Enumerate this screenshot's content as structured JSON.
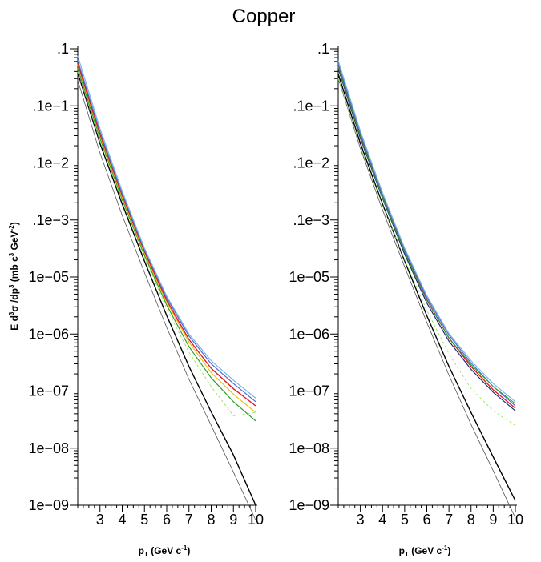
{
  "figure": {
    "title": "Copper"
  },
  "legend_colors": {
    "black": "#000000",
    "gray": "#555555",
    "red": "#e41a1c",
    "blue": "#4a6cd4",
    "lightblue": "#7ab6e6",
    "green": "#2ca02c",
    "lightgreen": "#88dd55",
    "yellow": "#e6c21a",
    "navy": "#1a2a80"
  },
  "chart_data": [
    {
      "type": "line",
      "panel": "left",
      "title": "",
      "xlabel": "p_T (GeV c^-1)",
      "xlabel_parts": {
        "main": "p",
        "sub": "T",
        "rest": " (GeV  c",
        "sup": "-1",
        "end": ")"
      },
      "ylabel": "E d3σ /dp3 (mb c3 GeV-2)",
      "ylabel_parts": [
        "E d",
        "3",
        "σ /dp",
        "3",
        "  (mb c",
        "3",
        " GeV",
        "-2",
        ")"
      ],
      "xlim": [
        2,
        10
      ],
      "ylim": [
        1e-09,
        0.1
      ],
      "yscale": "log",
      "x_ticks": [
        3,
        4,
        5,
        6,
        7,
        8,
        9,
        10
      ],
      "x_tick_labels": [
        "3",
        "4",
        "5",
        "6",
        "7",
        "8",
        "9",
        "10"
      ],
      "y_ticks": [
        0.1,
        0.01,
        0.001,
        0.0001,
        1e-05,
        1e-06,
        1e-07,
        1e-08,
        1e-09
      ],
      "y_tick_labels": [
        ".1",
        ".1e−1",
        ".1e−2",
        ".1e−3",
        "1e−05",
        "1e−06",
        "1e−07",
        "1e−08",
        "1e−09"
      ],
      "grid": false,
      "series": [
        {
          "color": "#555555",
          "width": 0.8,
          "dash": "",
          "x": [
            2,
            3,
            4,
            5,
            6,
            7,
            8,
            9,
            10
          ],
          "y": [
            0.028,
            0.0015,
            0.00012,
            1.2e-05,
            1.3e-06,
            1.6e-07,
            2.5e-08,
            3.8e-09,
            5.5e-10
          ]
        },
        {
          "color": "#000000",
          "width": 1.4,
          "dash": "",
          "x": [
            2,
            3,
            4,
            5,
            6,
            7,
            8,
            9,
            10
          ],
          "y": [
            0.038,
            0.0022,
            0.00019,
            1.9e-05,
            2.1e-06,
            2.7e-07,
            4.3e-08,
            7.6e-09,
            1e-09
          ]
        },
        {
          "color": "#88dd55",
          "width": 0.8,
          "dash": "3,3",
          "x": [
            2,
            3,
            4,
            5,
            6,
            7,
            8,
            9,
            10
          ],
          "y": [
            0.04,
            0.0024,
            0.00021,
            2.2e-05,
            2.8e-06,
            4.8e-07,
            1.2e-07,
            3.7e-08,
            4.2e-08
          ]
        },
        {
          "color": "#2ca02c",
          "width": 1.2,
          "dash": "",
          "x": [
            2,
            3,
            4,
            5,
            6,
            7,
            8,
            9,
            10
          ],
          "y": [
            0.045,
            0.0027,
            0.00023,
            2.4e-05,
            3.2e-06,
            6e-07,
            1.7e-07,
            6.5e-08,
            3e-08
          ]
        },
        {
          "color": "#e6c21a",
          "width": 1.2,
          "dash": "",
          "x": [
            2,
            3,
            4,
            5,
            6,
            7,
            8,
            9,
            10
          ],
          "y": [
            0.052,
            0.003,
            0.00025,
            2.6e-05,
            3.6e-06,
            7.2e-07,
            2.1e-07,
            8.8e-08,
            4.2e-08
          ]
        },
        {
          "color": "#e41a1c",
          "width": 1.4,
          "dash": "",
          "x": [
            2,
            3,
            4,
            5,
            6,
            7,
            8,
            9,
            10
          ],
          "y": [
            0.055,
            0.0032,
            0.00027,
            2.8e-05,
            3.9e-06,
            8e-07,
            2.5e-07,
            1.1e-07,
            5.5e-08
          ]
        },
        {
          "color": "#4a6cd4",
          "width": 1.2,
          "dash": "",
          "x": [
            2,
            3,
            4,
            5,
            6,
            7,
            8,
            9,
            10
          ],
          "y": [
            0.062,
            0.0035,
            0.00029,
            3e-05,
            4.3e-06,
            9.2e-07,
            3e-07,
            1.35e-07,
            6.5e-08
          ]
        },
        {
          "color": "#7ab6e6",
          "width": 1.2,
          "dash": "",
          "x": [
            2,
            3,
            4,
            5,
            6,
            7,
            8,
            9,
            10
          ],
          "y": [
            0.075,
            0.004,
            0.00032,
            3.2e-05,
            4.6e-06,
            1e-06,
            3.4e-07,
            1.55e-07,
            7.5e-08
          ]
        }
      ]
    },
    {
      "type": "line",
      "panel": "right",
      "title": "",
      "xlabel": "p_T (GeV c^-1)",
      "xlabel_parts": {
        "main": "p",
        "sub": "T",
        "rest": " (GeV  c",
        "sup": "-1",
        "end": ")"
      },
      "ylabel": "",
      "xlim": [
        2,
        10
      ],
      "ylim": [
        1e-09,
        0.1
      ],
      "yscale": "log",
      "x_ticks": [
        3,
        4,
        5,
        6,
        7,
        8,
        9,
        10
      ],
      "x_tick_labels": [
        "3",
        "4",
        "5",
        "6",
        "7",
        "8",
        "9",
        "10"
      ],
      "y_ticks": [
        0.1,
        0.01,
        0.001,
        0.0001,
        1e-05,
        1e-06,
        1e-07,
        1e-08,
        1e-09
      ],
      "y_tick_labels": [
        ".1",
        ".1e−1",
        ".1e−2",
        ".1e−3",
        "1e−05",
        "1e−06",
        "1e−07",
        "1e−08",
        "1e−09"
      ],
      "grid": false,
      "series": [
        {
          "color": "#555555",
          "width": 0.8,
          "dash": "",
          "x": [
            2,
            3,
            4,
            5,
            6,
            7,
            8,
            9,
            10
          ],
          "y": [
            0.03,
            0.0018,
            0.00015,
            1.5e-05,
            1.6e-06,
            1.9e-07,
            2.6e-08,
            4e-09,
            6e-10
          ]
        },
        {
          "color": "#000000",
          "width": 1.4,
          "dash": "",
          "x": [
            2,
            3,
            4,
            5,
            6,
            7,
            8,
            9,
            10
          ],
          "y": [
            0.036,
            0.0022,
            0.00019,
            1.9e-05,
            2.1e-06,
            2.7e-07,
            4.2e-08,
            7e-09,
            1.2e-09
          ]
        },
        {
          "color": "#88dd55",
          "width": 0.8,
          "dash": "3,3",
          "x": [
            2,
            3,
            4,
            5,
            6,
            7,
            8,
            9,
            10
          ],
          "y": [
            0.03,
            0.0019,
            0.00018,
            2e-05,
            2.6e-06,
            4.5e-07,
            1.1e-07,
            4.5e-08,
            2.5e-08
          ]
        },
        {
          "color": "#1a2a80",
          "width": 1.2,
          "dash": "",
          "x": [
            2,
            3,
            4,
            5,
            6,
            7,
            8,
            9,
            10
          ],
          "y": [
            0.045,
            0.0027,
            0.00024,
            2.5e-05,
            3.5e-06,
            7.5e-07,
            2.4e-07,
            9.5e-08,
            4.5e-08
          ]
        },
        {
          "color": "#e41a1c",
          "width": 1.4,
          "dash": "",
          "x": [
            2,
            3,
            4,
            5,
            6,
            7,
            8,
            9,
            10
          ],
          "y": [
            0.05,
            0.003,
            0.00026,
            2.8e-05,
            4e-06,
            8.5e-07,
            2.7e-07,
            1.05e-07,
            5e-08
          ]
        },
        {
          "color": "#4a6cd4",
          "width": 1.2,
          "dash": "",
          "x": [
            2,
            3,
            4,
            5,
            6,
            7,
            8,
            9,
            10
          ],
          "y": [
            0.055,
            0.0033,
            0.00028,
            3e-05,
            4.4e-06,
            9.6e-07,
            3.1e-07,
            1.2e-07,
            5.5e-08
          ]
        },
        {
          "color": "#2ca02c",
          "width": 1.0,
          "dash": "",
          "x": [
            2,
            3,
            4,
            5,
            6,
            7,
            8,
            9,
            10
          ],
          "y": [
            0.048,
            0.0029,
            0.00025,
            2.7e-05,
            3.9e-06,
            8.6e-07,
            2.9e-07,
            1.2e-07,
            6e-08
          ]
        },
        {
          "color": "#7ab6e6",
          "width": 1.2,
          "dash": "",
          "x": [
            2,
            3,
            4,
            5,
            6,
            7,
            8,
            9,
            10
          ],
          "y": [
            0.062,
            0.0036,
            0.0003,
            3.2e-05,
            4.7e-06,
            1.02e-06,
            3.4e-07,
            1.35e-07,
            6.5e-08
          ]
        }
      ]
    }
  ]
}
